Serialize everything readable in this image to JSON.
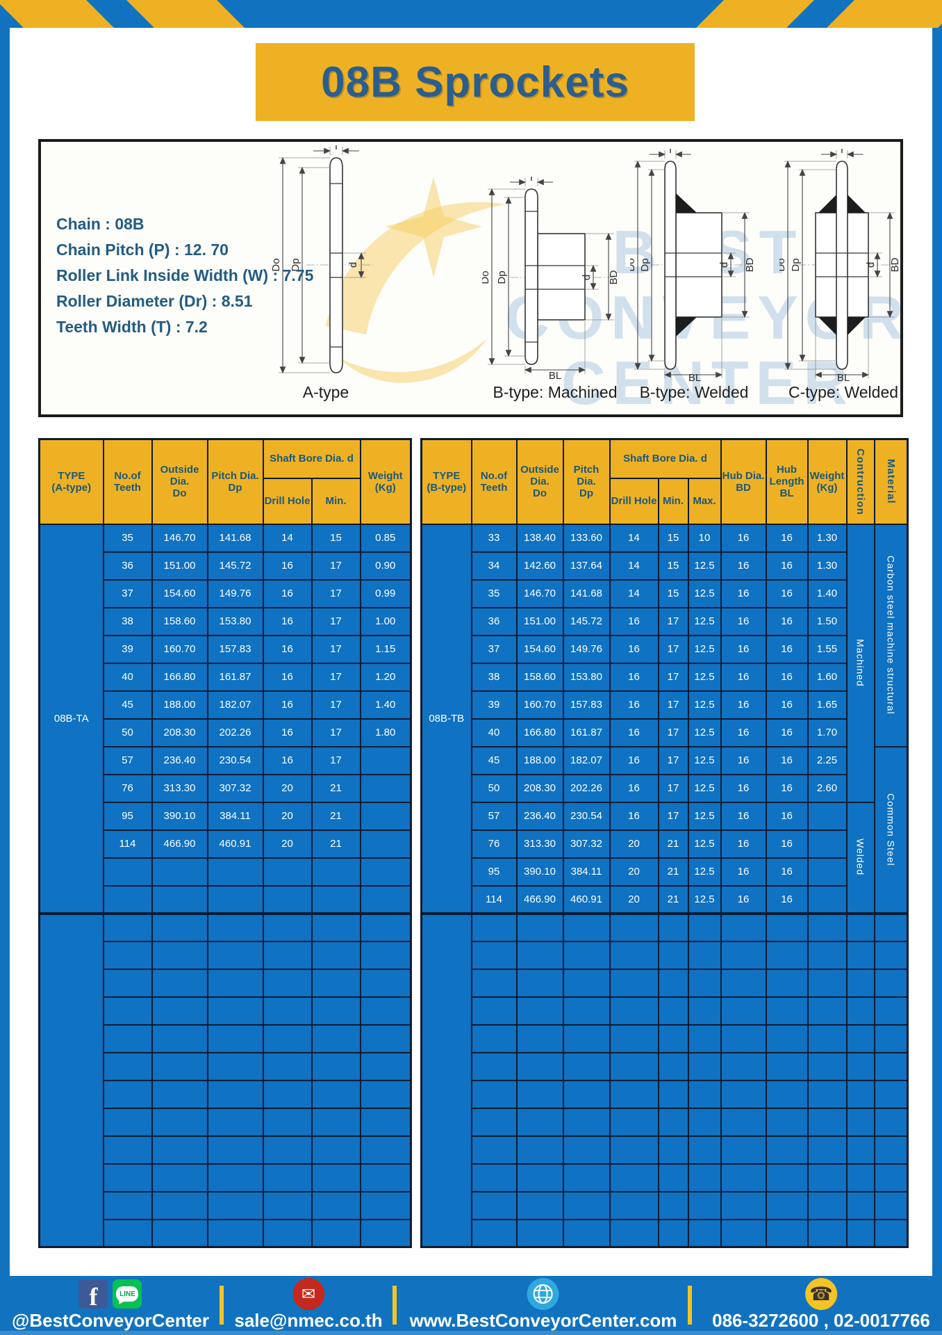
{
  "page": {
    "title": "08B Sprockets"
  },
  "specs": {
    "lines": [
      "Chain  : 08B",
      "Chain Pitch (P)  :  12. 70",
      "Roller Link Inside Width (W)  :  7.75",
      "Roller Diameter (Dr)  : 8.51",
      "Teeth Width (T)  :  7.2"
    ]
  },
  "diagram": {
    "captions": [
      "A-type",
      "B-type: Machined",
      "B-type: Welded",
      "C-type: Welded"
    ],
    "labels": {
      "T": "T",
      "Do": "Do",
      "Dp": "Dp",
      "d": "d",
      "BD": "BD",
      "BL": "BL"
    },
    "watermark": {
      "line1": "BEST",
      "line2": "CONVEYOR",
      "line3": "CENTER"
    }
  },
  "table_a": {
    "headers": {
      "type": "TYPE\n(A-type)",
      "teeth": "No.of\nTeeth",
      "outside": "Outside\nDia.\nDo",
      "pitch": "Pitch Dia.\nDp",
      "shaft_bore": "Shaft Bore Dia. d",
      "drill_hole": "Drill Hole",
      "min": "Min.",
      "weight": "Weight\n(Kg)"
    },
    "type_label": "08B-TA",
    "rows": [
      [
        "35",
        "146.70",
        "141.68",
        "14",
        "15",
        "0.85"
      ],
      [
        "36",
        "151.00",
        "145.72",
        "16",
        "17",
        "0.90"
      ],
      [
        "37",
        "154.60",
        "149.76",
        "16",
        "17",
        "0.99"
      ],
      [
        "38",
        "158.60",
        "153.80",
        "16",
        "17",
        "1.00"
      ],
      [
        "39",
        "160.70",
        "157.83",
        "16",
        "17",
        "1.15"
      ],
      [
        "40",
        "166.80",
        "161.87",
        "16",
        "17",
        "1.20"
      ],
      [
        "45",
        "188.00",
        "182.07",
        "16",
        "17",
        "1.40"
      ],
      [
        "50",
        "208.30",
        "202.26",
        "16",
        "17",
        "1.80"
      ],
      [
        "57",
        "236.40",
        "230.54",
        "16",
        "17",
        ""
      ],
      [
        "76",
        "313.30",
        "307.32",
        "20",
        "21",
        ""
      ],
      [
        "95",
        "390.10",
        "384.11",
        "20",
        "21",
        ""
      ],
      [
        "114",
        "466.90",
        "460.91",
        "20",
        "21",
        ""
      ]
    ],
    "empty_rows_block1": 2,
    "empty_rows_block2": 12
  },
  "table_b": {
    "headers": {
      "type": "TYPE\n(B-type)",
      "teeth": "No.of\nTeeth",
      "outside": "Outside\nDia.\nDo",
      "pitch": "Pitch Dia.\nDp",
      "shaft_bore": "Shaft Bore Dia. d",
      "drill_hole": "Drill Hole",
      "min": "Min.",
      "max": "Max.",
      "hub_dia": "Hub Dia.\nBD",
      "hub_length": "Hub\nLength\nBL",
      "weight": "Weight\n(Kg)",
      "construction": "Contruction",
      "material": "Material"
    },
    "type_label": "08B-TB",
    "rows": [
      [
        "33",
        "138.40",
        "133.60",
        "14",
        "15",
        "10",
        "16",
        "16",
        "1.30"
      ],
      [
        "34",
        "142.60",
        "137.64",
        "14",
        "15",
        "12.5",
        "16",
        "16",
        "1.30"
      ],
      [
        "35",
        "146.70",
        "141.68",
        "14",
        "15",
        "12.5",
        "16",
        "16",
        "1.40"
      ],
      [
        "36",
        "151.00",
        "145.72",
        "16",
        "17",
        "12.5",
        "16",
        "16",
        "1.50"
      ],
      [
        "37",
        "154.60",
        "149.76",
        "16",
        "17",
        "12.5",
        "16",
        "16",
        "1.55"
      ],
      [
        "38",
        "158.60",
        "153.80",
        "16",
        "17",
        "12.5",
        "16",
        "16",
        "1.60"
      ],
      [
        "39",
        "160.70",
        "157.83",
        "16",
        "17",
        "12.5",
        "16",
        "16",
        "1.65"
      ],
      [
        "40",
        "166.80",
        "161.87",
        "16",
        "17",
        "12.5",
        "16",
        "16",
        "1.70"
      ],
      [
        "45",
        "188.00",
        "182.07",
        "16",
        "17",
        "12.5",
        "16",
        "16",
        "2.25"
      ],
      [
        "50",
        "208.30",
        "202.26",
        "16",
        "17",
        "12.5",
        "16",
        "16",
        "2.60"
      ],
      [
        "57",
        "236.40",
        "230.54",
        "16",
        "17",
        "12.5",
        "16",
        "16",
        ""
      ],
      [
        "76",
        "313.30",
        "307.32",
        "20",
        "21",
        "12.5",
        "16",
        "16",
        ""
      ],
      [
        "95",
        "390.10",
        "384.11",
        "20",
        "21",
        "12.5",
        "16",
        "16",
        ""
      ],
      [
        "114",
        "466.90",
        "460.91",
        "20",
        "21",
        "12.5",
        "16",
        "16",
        ""
      ]
    ],
    "construction": [
      {
        "label": "Machined",
        "rows": 10
      },
      {
        "label": "Welded",
        "rows": 4
      }
    ],
    "material": [
      {
        "label": "Carbon steel  machine  structural",
        "rows": 8
      },
      {
        "label": "Common  Steel",
        "rows": 6
      }
    ],
    "empty_rows_block2": 12
  },
  "footer": {
    "items": [
      {
        "icons": [
          "facebook",
          "line"
        ],
        "text": "@BestConveyorCenter"
      },
      {
        "icons": [
          "email"
        ],
        "text": "sale@nmec.co.th"
      },
      {
        "icons": [
          "globe"
        ],
        "text": "www.BestConveyorCenter.com"
      },
      {
        "icons": [
          "phone"
        ],
        "text": "086-3272600 , 02-0017766"
      }
    ]
  },
  "colors": {
    "frame_blue": "#1173bf",
    "accent_yellow": "#eeb124",
    "cell_blue": "#0f72c2",
    "title_text": "#2b5e8c",
    "header_text": "#1b587a",
    "border_navy": "#0c1c33"
  }
}
